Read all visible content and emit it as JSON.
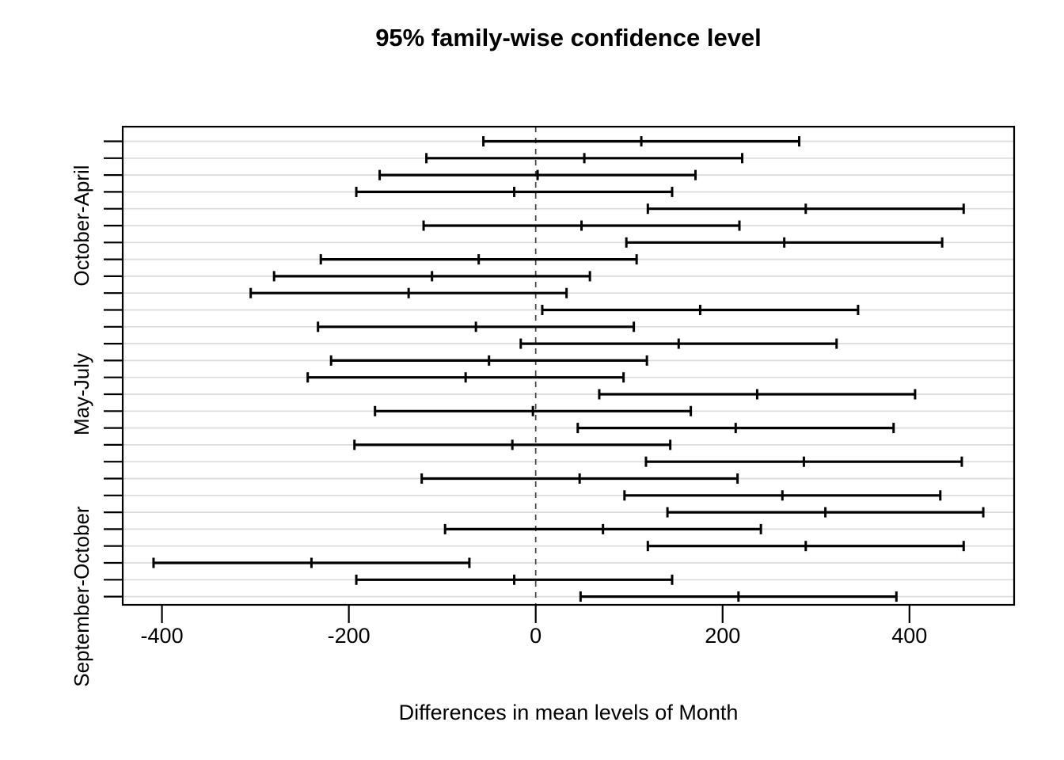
{
  "title": "95% family-wise confidence level",
  "xlabel": "Differences in mean levels of Month",
  "chart_data": {
    "type": "errorbar",
    "subtype": "tukey-hsd-confidence-intervals",
    "orientation": "horizontal",
    "confidence_level": "95% family-wise",
    "title": "95% family-wise confidence level",
    "xlabel": "Differences in mean levels of Month",
    "xlim": [
      -442,
      512
    ],
    "x_ticks": [
      -400,
      -200,
      0,
      200,
      400
    ],
    "x_tick_labels": [
      "-400",
      "-200",
      "0",
      "200",
      "400"
    ],
    "zero_reference_line": 0,
    "grid": true,
    "n_rows": 28,
    "y_axis_visible_labels": [
      {
        "label": "October-April",
        "row": 6
      },
      {
        "label": "May-July",
        "row": 16
      },
      {
        "label": "September-October",
        "row": 28
      }
    ],
    "intervals": [
      {
        "row": 1,
        "diff": 113,
        "lower": -56,
        "upper": 282
      },
      {
        "row": 2,
        "diff": 52,
        "lower": -117,
        "upper": 221
      },
      {
        "row": 3,
        "diff": 2,
        "lower": -167,
        "upper": 171
      },
      {
        "row": 4,
        "diff": -23,
        "lower": -192,
        "upper": 146
      },
      {
        "row": 5,
        "diff": 289,
        "lower": 120,
        "upper": 458
      },
      {
        "row": 6,
        "diff": 49,
        "lower": -120,
        "upper": 218
      },
      {
        "row": 7,
        "diff": 266,
        "lower": 97,
        "upper": 435
      },
      {
        "row": 8,
        "diff": -61,
        "lower": -230,
        "upper": 108
      },
      {
        "row": 9,
        "diff": -111,
        "lower": -280,
        "upper": 58
      },
      {
        "row": 10,
        "diff": -136,
        "lower": -305,
        "upper": 33
      },
      {
        "row": 11,
        "diff": 176,
        "lower": 7,
        "upper": 345
      },
      {
        "row": 12,
        "diff": -64,
        "lower": -233,
        "upper": 105
      },
      {
        "row": 13,
        "diff": 153,
        "lower": -16,
        "upper": 322
      },
      {
        "row": 14,
        "diff": -50,
        "lower": -219,
        "upper": 119
      },
      {
        "row": 15,
        "diff": -75,
        "lower": -244,
        "upper": 94
      },
      {
        "row": 16,
        "diff": 237,
        "lower": 68,
        "upper": 406
      },
      {
        "row": 17,
        "diff": -3,
        "lower": -172,
        "upper": 166
      },
      {
        "row": 18,
        "diff": 214,
        "lower": 45,
        "upper": 383
      },
      {
        "row": 19,
        "diff": -25,
        "lower": -194,
        "upper": 144
      },
      {
        "row": 20,
        "diff": 287,
        "lower": 118,
        "upper": 456
      },
      {
        "row": 21,
        "diff": 47,
        "lower": -122,
        "upper": 216
      },
      {
        "row": 22,
        "diff": 264,
        "lower": 95,
        "upper": 433
      },
      {
        "row": 23,
        "diff": 310,
        "lower": 141,
        "upper": 479
      },
      {
        "row": 24,
        "diff": 72,
        "lower": -97,
        "upper": 241
      },
      {
        "row": 25,
        "diff": 289,
        "lower": 120,
        "upper": 458
      },
      {
        "row": 26,
        "diff": -240,
        "lower": -409,
        "upper": -71
      },
      {
        "row": 27,
        "diff": -23,
        "lower": -192,
        "upper": 146
      },
      {
        "row": 28,
        "diff": 217,
        "lower": 48,
        "upper": 386
      }
    ]
  },
  "colors": {
    "background": "#ffffff",
    "interval_line": "#000000",
    "grid_line": "#dcdcdc",
    "zero_line": "#444444",
    "axis": "#000000",
    "text": "#000000"
  }
}
